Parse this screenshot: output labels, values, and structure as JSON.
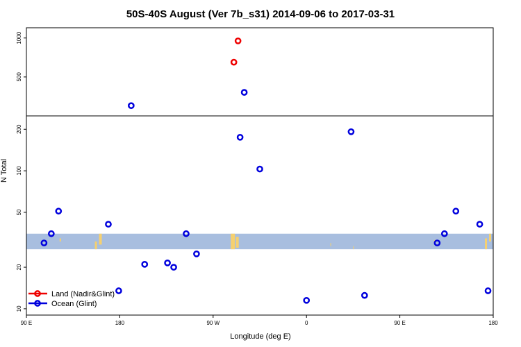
{
  "chart_data": {
    "type": "scatter",
    "title": "50S-40S August (Ver 7b_s31)   2014-09-06 to 2017-03-31",
    "xlabel": "Longitude (deg E)",
    "ylabel": "N Total",
    "y_scale": "log",
    "x_ticks": [
      {
        "value": 90,
        "label": "90 E"
      },
      {
        "value": 180,
        "label": "180"
      },
      {
        "value": 270,
        "label": "90 W"
      },
      {
        "value": 360,
        "label": "0"
      },
      {
        "value": 450,
        "label": "90 E"
      },
      {
        "value": 540,
        "label": "180"
      }
    ],
    "xlim": [
      90,
      540
    ],
    "upper_panel": {
      "ylim": [
        250,
        1200
      ],
      "y_ticks": [
        500,
        1000
      ]
    },
    "lower_panel": {
      "ylim": [
        9,
        250
      ],
      "y_ticks": [
        10,
        20,
        50,
        100,
        200
      ]
    },
    "land_band": {
      "ymin": 27,
      "ymax": 35,
      "color": "#a8bedf",
      "land_color": "#f5d070"
    },
    "series": [
      {
        "name": "Land (Nadir&Glint)",
        "color": "#ee0000",
        "points": [
          {
            "x": 294,
            "y": 950
          },
          {
            "x": 290,
            "y": 650
          }
        ]
      },
      {
        "name": "Ocean (Glint)",
        "color": "#0000dd",
        "points": [
          {
            "x": 300,
            "y": 380
          },
          {
            "x": 191,
            "y": 300
          },
          {
            "x": 296,
            "y": 175
          },
          {
            "x": 403,
            "y": 192
          },
          {
            "x": 315,
            "y": 103
          },
          {
            "x": 121,
            "y": 51
          },
          {
            "x": 504,
            "y": 51
          },
          {
            "x": 169,
            "y": 41
          },
          {
            "x": 527,
            "y": 41
          },
          {
            "x": 114,
            "y": 35
          },
          {
            "x": 244,
            "y": 35
          },
          {
            "x": 493,
            "y": 35
          },
          {
            "x": 107,
            "y": 30
          },
          {
            "x": 486,
            "y": 30
          },
          {
            "x": 254,
            "y": 25
          },
          {
            "x": 226,
            "y": 21.5
          },
          {
            "x": 204,
            "y": 21
          },
          {
            "x": 232,
            "y": 20
          },
          {
            "x": 179,
            "y": 13.5
          },
          {
            "x": 535,
            "y": 13.5
          },
          {
            "x": 416,
            "y": 12.5
          },
          {
            "x": 360,
            "y": 11.5
          }
        ]
      }
    ]
  }
}
